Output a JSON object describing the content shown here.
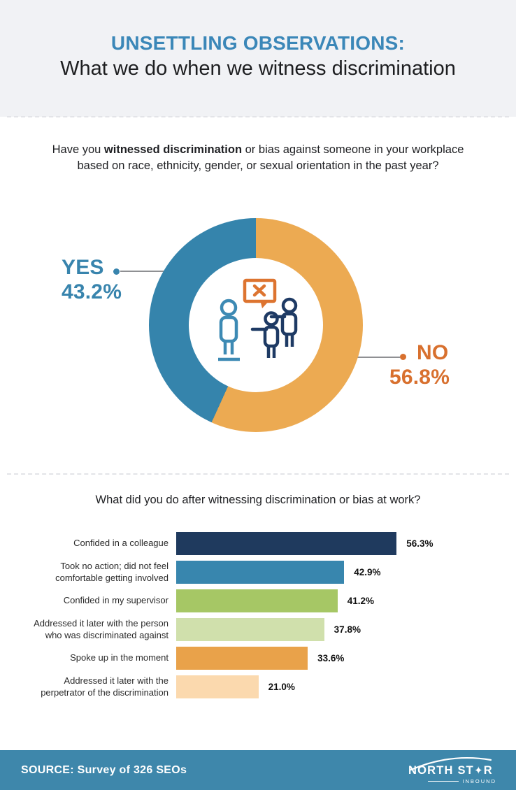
{
  "header": {
    "title": "UNSETTLING OBSERVATIONS:",
    "subtitle": "What we do when we witness discrimination"
  },
  "question1": {
    "prefix": "Have you ",
    "bold": "witnessed discrimination",
    "suffix": " or bias against someone in your workplace based on race, ethnicity, gender, or sexual orientation in the past year?"
  },
  "donut_labels": {
    "yes_word": "YES",
    "yes_pct": "43.2%",
    "no_word": "NO",
    "no_pct": "56.8%"
  },
  "question2": "What did you do after witnessing discrimination or bias at work?",
  "footer": {
    "source": "SOURCE: Survey of 326 SEOs",
    "logo_line1": "NORTH ST",
    "logo_star": "✦",
    "logo_r": "R",
    "logo_sub": "INBOUND"
  },
  "colors": {
    "title_blue": "#3b87b8",
    "yes_blue": "#3884ad",
    "no_orange": "#d8702e",
    "donut_blue": "#3584ac",
    "donut_orange": "#ecaa52",
    "icon_navy": "#1e3a64",
    "icon_blue": "#3d8ab4",
    "bubble_orange": "#dd7430",
    "footer_blue": "#3e87ab",
    "header_bg": "#f1f2f5"
  },
  "chart_data": [
    {
      "type": "pie",
      "donut": true,
      "title": "Have you witnessed discrimination or bias against someone in your workplace based on race, ethnicity, gender, or sexual orientation in the past year?",
      "start_angle_deg": 0,
      "direction": "clockwise",
      "slices": [
        {
          "label": "NO",
          "value": 56.8,
          "color": "#ecaa52"
        },
        {
          "label": "YES",
          "value": 43.2,
          "color": "#3584ac"
        }
      ]
    },
    {
      "type": "bar",
      "orientation": "horizontal",
      "title": "What did you do after witnessing discrimination or bias at work?",
      "categories": [
        "Confided in a colleague",
        "Took no action; did not feel comfortable getting involved",
        "Confided in my supervisor",
        "Addressed it later with the person who was discriminated against",
        "Spoke up in the moment",
        "Addressed it later with the perpetrator of the discrimination"
      ],
      "values": [
        56.3,
        42.9,
        41.2,
        37.8,
        33.6,
        21.0
      ],
      "value_labels": [
        "56.3%",
        "42.9%",
        "41.2%",
        "37.8%",
        "33.6%",
        "21.0%"
      ],
      "colors": [
        "#1f3a5e",
        "#3886ae",
        "#a6c765",
        "#d0e0ac",
        "#e9a24a",
        "#fbd9ae"
      ],
      "xlim": [
        0,
        60
      ],
      "grid": false,
      "legend": false
    }
  ]
}
